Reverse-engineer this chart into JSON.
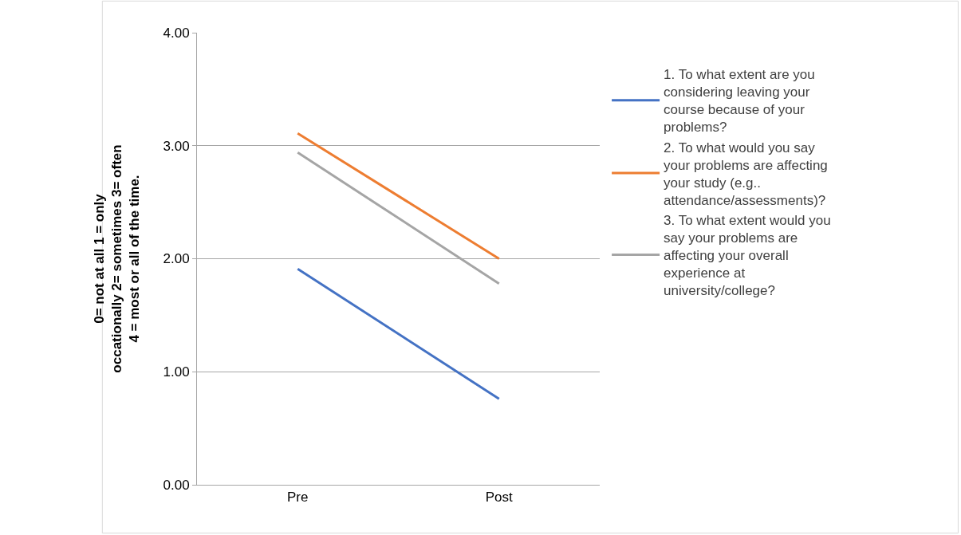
{
  "chart_data": {
    "type": "line",
    "ylabel": "0= not at all 1 = only occationally 2= sometimes 3= often 4 = most or all of the time.",
    "categories": [
      "Pre",
      "Post"
    ],
    "series": [
      {
        "name": "1. To what extent are you considering leaving your course because of your problems?",
        "color": "#4472c4",
        "values": [
          1.91,
          0.76
        ]
      },
      {
        "name": "2. To what would you say your problems are affecting your study (e.g.. attendance/assessments)?",
        "color": "#ed7d31",
        "values": [
          3.11,
          2.0
        ]
      },
      {
        "name": "3. To what extent would you say your problems are affecting your overall experience at university/college?",
        "color": "#a5a5a5",
        "values": [
          2.94,
          1.78
        ]
      }
    ],
    "ylim": [
      0,
      4
    ],
    "yticks": [
      {
        "value": 0,
        "label": "0.00"
      },
      {
        "value": 1,
        "label": "1.00"
      },
      {
        "value": 2,
        "label": "2.00"
      },
      {
        "value": 3,
        "label": "3.00"
      },
      {
        "value": 4,
        "label": "4.00"
      }
    ],
    "grid": "y",
    "legend": "right",
    "marker": "none",
    "line_style": "solid"
  }
}
